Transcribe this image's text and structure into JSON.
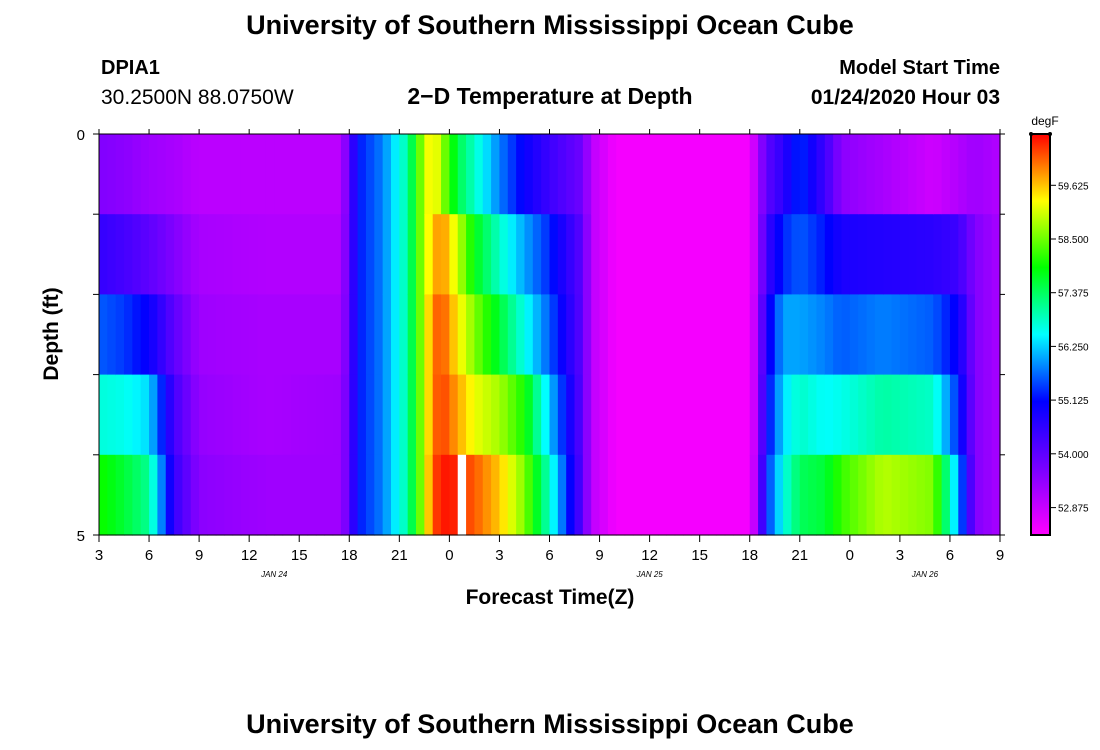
{
  "header": {
    "top_title": "University of Southern Mississippi Ocean Cube",
    "bottom_title": "University of Southern Mississippi Ocean Cube",
    "station": "DPIA1",
    "coords": "30.2500N 88.0750W",
    "subtitle": "2−D Temperature at Depth",
    "model_start_label": "Model Start Time",
    "model_start_date": "01/24/2020 Hour 03"
  },
  "chart_data": {
    "type": "heatmap",
    "title": "2−D Temperature at Depth",
    "xlabel": "Forecast Time(Z)",
    "ylabel": "Depth (ft)",
    "x_tick_labels": [
      "3",
      "6",
      "9",
      "12",
      "15",
      "18",
      "21",
      "0",
      "3",
      "6",
      "9",
      "12",
      "15",
      "18",
      "21",
      "0",
      "3",
      "6",
      "9"
    ],
    "x_hours": [
      0,
      54
    ],
    "date_labels": [
      {
        "text": "JAN  24",
        "hour": 10.5
      },
      {
        "text": "JAN  25",
        "hour": 33
      },
      {
        "text": "JAN  26",
        "hour": 49.5
      }
    ],
    "y_tick_labels": [
      "0",
      "5"
    ],
    "ylim": [
      0,
      5
    ],
    "y_inverted": true,
    "units": "degF",
    "colorbar_ticks": [
      "59.625",
      "58.500",
      "57.375",
      "56.250",
      "55.125",
      "54.000",
      "52.875"
    ],
    "color_range": [
      52.3,
      60.7
    ],
    "depth_rows": 5,
    "columns_per_hour": 2,
    "keyframes_note": "temperature (degF) by forecast hour; each hour lists values for depth bands 0-1,1-2,2-3,3-4,4-5 ft",
    "keyframes": [
      {
        "h": 0,
        "v": [
          53.6,
          54.5,
          55.6,
          56.7,
          58.0
        ]
      },
      {
        "h": 1.5,
        "v": [
          53.5,
          54.3,
          55.4,
          56.6,
          57.6
        ]
      },
      {
        "h": 3,
        "v": [
          53.3,
          54.0,
          55.0,
          56.3,
          57.1
        ]
      },
      {
        "h": 4.5,
        "v": [
          53.2,
          53.6,
          54.0,
          54.3,
          54.5
        ]
      },
      {
        "h": 6,
        "v": [
          53.0,
          53.2,
          53.3,
          53.4,
          53.5
        ]
      },
      {
        "h": 10,
        "v": [
          53.0,
          53.1,
          53.2,
          53.2,
          53.3
        ]
      },
      {
        "h": 14.5,
        "v": [
          53.0,
          53.1,
          53.2,
          53.3,
          53.3
        ]
      },
      {
        "h": 15,
        "v": [
          54.0,
          54.0,
          54.0,
          54.0,
          54.0
        ]
      },
      {
        "h": 15.5,
        "v": [
          55.2,
          55.2,
          55.2,
          55.2,
          55.2
        ]
      },
      {
        "h": 17,
        "v": [
          55.8,
          55.8,
          55.8,
          55.8,
          55.8
        ]
      },
      {
        "h": 18.5,
        "v": [
          57.0,
          57.0,
          57.0,
          57.0,
          57.0
        ]
      },
      {
        "h": 19.5,
        "v": [
          59.0,
          59.0,
          59.0,
          59.0,
          59.0
        ]
      },
      {
        "h": 20,
        "v": [
          59.5,
          59.6,
          60.0,
          60.0,
          60.2
        ]
      },
      {
        "h": 20.5,
        "v": [
          58.8,
          60.0,
          60.3,
          60.4,
          60.6
        ]
      },
      {
        "h": 21.5,
        "v": [
          57.5,
          59.0,
          59.4,
          59.8,
          60.5
        ]
      },
      {
        "h": 22.5,
        "v": [
          56.8,
          57.8,
          58.6,
          59.2,
          60.2
        ]
      },
      {
        "h": 24,
        "v": [
          55.8,
          56.8,
          57.6,
          58.8,
          59.6
        ]
      },
      {
        "h": 25.5,
        "v": [
          55.0,
          56.0,
          56.6,
          58.0,
          58.6
        ]
      },
      {
        "h": 27,
        "v": [
          54.4,
          55.3,
          55.6,
          56.2,
          56.8
        ]
      },
      {
        "h": 29,
        "v": [
          53.8,
          54.0,
          54.0,
          54.0,
          54.0
        ]
      },
      {
        "h": 29.5,
        "v": [
          53.0,
          53.0,
          53.0,
          53.0,
          53.0
        ]
      },
      {
        "h": 31,
        "v": [
          52.4,
          52.4,
          52.4,
          52.4,
          52.4
        ]
      },
      {
        "h": 39,
        "v": [
          52.4,
          52.4,
          52.4,
          52.4,
          52.4
        ]
      },
      {
        "h": 39.5,
        "v": [
          53.2,
          53.2,
          53.3,
          53.3,
          53.4
        ]
      },
      {
        "h": 40,
        "v": [
          54.0,
          54.4,
          54.8,
          55.0,
          55.3
        ]
      },
      {
        "h": 41,
        "v": [
          54.6,
          55.3,
          56.0,
          56.3,
          56.6
        ]
      },
      {
        "h": 42,
        "v": [
          55.4,
          55.6,
          56.0,
          56.8,
          57.4
        ]
      },
      {
        "h": 43.5,
        "v": [
          54.4,
          55.2,
          55.8,
          56.5,
          57.6
        ]
      },
      {
        "h": 44.5,
        "v": [
          53.5,
          54.8,
          55.6,
          56.6,
          58.2
        ]
      },
      {
        "h": 47,
        "v": [
          53.2,
          54.7,
          55.8,
          57.0,
          58.9
        ]
      },
      {
        "h": 50,
        "v": [
          52.8,
          54.6,
          55.6,
          56.8,
          58.6
        ]
      },
      {
        "h": 51.5,
        "v": [
          53.1,
          54.4,
          55.0,
          55.3,
          56.0
        ]
      },
      {
        "h": 52.5,
        "v": [
          53.3,
          53.6,
          53.6,
          53.6,
          53.6
        ]
      },
      {
        "h": 54,
        "v": [
          53.1,
          53.2,
          53.2,
          53.2,
          53.2
        ]
      }
    ],
    "missing_cells": [
      {
        "h": 21.5,
        "row": 4
      }
    ],
    "grid": false,
    "legend": "colorbar-right"
  }
}
